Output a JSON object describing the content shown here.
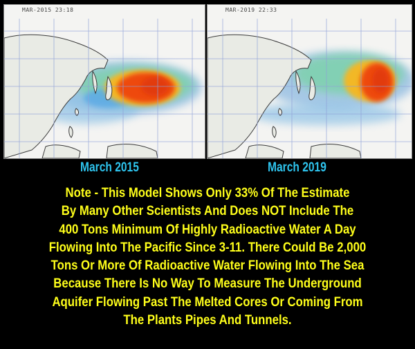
{
  "maps": [
    {
      "timestamp": "MAR-2015 23:18",
      "caption": "March 2015"
    },
    {
      "timestamp": "MAR-2019 22:33",
      "caption": "March 2019"
    }
  ],
  "colors": {
    "background": "#000000",
    "caption": "#2ec4ee",
    "note": "#ffff1a",
    "plume_high": "#ee4a10",
    "plume_mid": "#f2b828",
    "plume_low": "#7ad2a8",
    "plume_faint": "#86b6e0"
  },
  "note": {
    "lines": [
      "Note - This Model Shows Only 33% Of The Estimate",
      "By Many Other Scientists And Does NOT Include The",
      "400 Tons Minimum Of Highly Radioactive Water A Day",
      "Flowing Into The Pacific Since 3-11. There Could Be 2,000",
      "Tons Or More Of Radioactive Water Flowing Into The Sea",
      "Because There Is No Way To Measure The Underground",
      "Aquifer Flowing Past The Melted Cores Or Coming From",
      "The Plants Pipes And Tunnels."
    ]
  }
}
